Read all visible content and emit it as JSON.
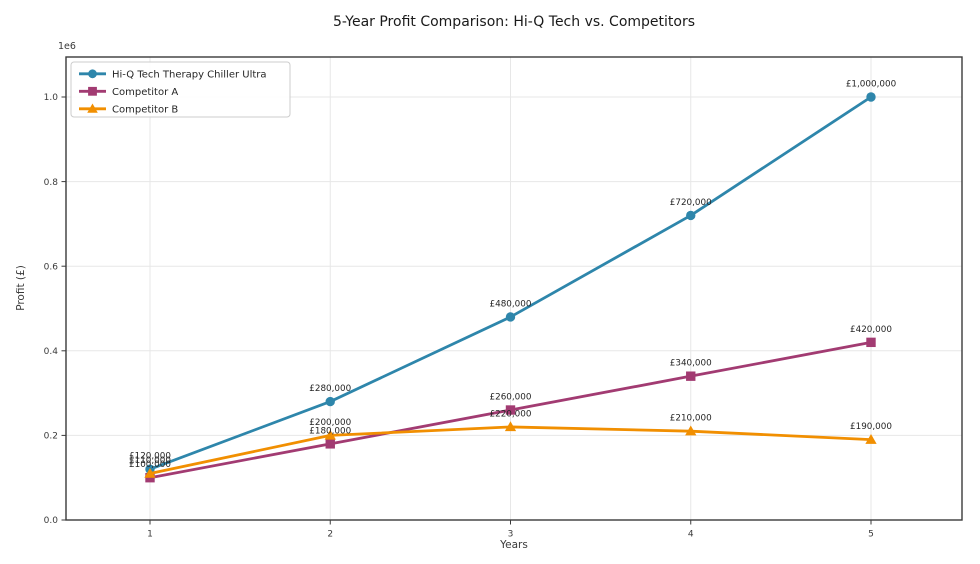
{
  "chart_data": {
    "type": "line",
    "title": "5-Year Profit Comparison: Hi-Q Tech vs. Competitors",
    "xlabel": "Years",
    "ylabel": "Profit (£)",
    "y_axis_offset_text": "1e6",
    "x": [
      1,
      2,
      3,
      4,
      5
    ],
    "xtick_labels": [
      "1",
      "2",
      "3",
      "4",
      "5"
    ],
    "ytick_values": [
      0,
      200000,
      400000,
      600000,
      800000,
      1000000
    ],
    "ytick_labels": [
      "0.0",
      "0.2",
      "0.4",
      "0.6",
      "0.8",
      "1.0"
    ],
    "ylim": [
      0,
      1094000
    ],
    "grid": true,
    "legend_position": "upper left",
    "series": [
      {
        "name": "Hi-Q Tech Therapy Chiller Ultra",
        "color": "#2E86AB",
        "marker": "circle",
        "values": [
          120000,
          280000,
          480000,
          720000,
          1000000
        ],
        "point_labels": [
          "£120,000",
          "£280,000",
          "£480,000",
          "£720,000",
          "£1,000,000"
        ]
      },
      {
        "name": "Competitor A",
        "color": "#A23B72",
        "marker": "square",
        "values": [
          100000,
          180000,
          260000,
          340000,
          420000
        ],
        "point_labels": [
          "£100,000",
          "£180,000",
          "£260,000",
          "£340,000",
          "£420,000"
        ]
      },
      {
        "name": "Competitor B",
        "color": "#F18F01",
        "marker": "triangle",
        "values": [
          110000,
          200000,
          220000,
          210000,
          190000
        ],
        "point_labels": [
          "£110,000",
          "£200,000",
          "£220,000",
          "£210,000",
          "£190,000"
        ]
      }
    ],
    "style": {
      "background": "#ffffff",
      "grid_color": "#e7e7e7",
      "spine_color": "#3a3a3a",
      "tick_label_color": "#3a3a3a",
      "data_label_color": "#262626",
      "title_color": "#1a1a1a",
      "legend_border_color": "#cccccc",
      "legend_background": "#ffffff"
    }
  }
}
